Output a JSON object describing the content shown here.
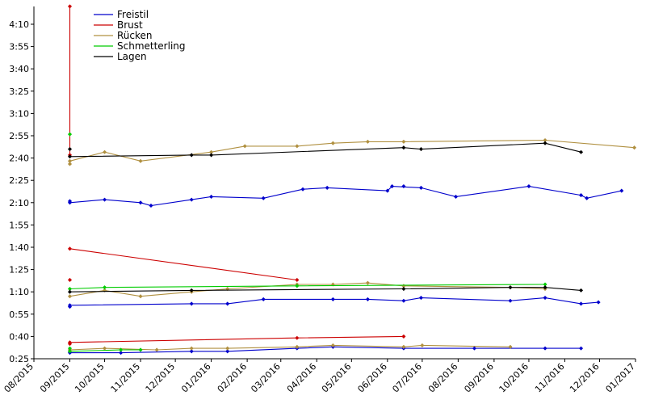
{
  "chart_data": {
    "type": "line",
    "title": "",
    "xlabel": "",
    "ylabel": "",
    "x_tick_labels": [
      "08/2015",
      "09/2015",
      "10/2015",
      "11/2015",
      "12/2015",
      "01/2016",
      "02/2016",
      "03/2016",
      "04/2016",
      "05/2016",
      "06/2016",
      "07/2016",
      "08/2016",
      "09/2016",
      "10/2016",
      "11/2016",
      "12/2016",
      "01/2017"
    ],
    "y_tick_labels": [
      "0:25",
      "0:40",
      "0:55",
      "1:10",
      "1:25",
      "1:40",
      "1:55",
      "2:10",
      "2:25",
      "2:40",
      "2:55",
      "3:10",
      "3:25",
      "3:40",
      "3:55",
      "4:10"
    ],
    "x_range": [
      "2015-08-01",
      "2017-01-01"
    ],
    "y_range_seconds": [
      25,
      265
    ],
    "legend_position": "top-left",
    "series": [
      {
        "name": "Freistil",
        "color": "#0000cc",
        "lines": [
          [
            [
              "2015-09-01",
              29
            ],
            [
              "2015-10-15",
              29
            ],
            [
              "2015-12-15",
              30
            ],
            [
              "2016-01-15",
              30
            ],
            [
              "2016-03-15",
              32
            ],
            [
              "2016-04-15",
              33
            ],
            [
              "2016-06-15",
              32
            ],
            [
              "2016-08-15",
              32
            ],
            [
              "2016-10-15",
              32
            ],
            [
              "2016-11-15",
              32
            ]
          ],
          [
            [
              "2015-09-01",
              61
            ],
            [
              "2015-12-15",
              62
            ],
            [
              "2016-01-15",
              62
            ],
            [
              "2016-02-15",
              65
            ],
            [
              "2016-04-15",
              65
            ],
            [
              "2016-05-15",
              65
            ],
            [
              "2016-06-15",
              64
            ],
            [
              "2016-06-30",
              66
            ],
            [
              "2016-09-15",
              64
            ],
            [
              "2016-10-15",
              66
            ],
            [
              "2016-11-15",
              62
            ],
            [
              "2016-11-30",
              63
            ]
          ],
          [
            [
              "2015-09-01",
              130
            ],
            [
              "2015-10-01",
              132
            ],
            [
              "2015-11-01",
              130
            ],
            [
              "2015-11-10",
              128
            ],
            [
              "2015-12-15",
              132
            ],
            [
              "2016-01-01",
              134
            ],
            [
              "2016-02-15",
              133
            ],
            [
              "2016-03-20",
              139
            ],
            [
              "2016-04-10",
              140
            ],
            [
              "2016-06-01",
              138
            ],
            [
              "2016-06-05",
              141
            ],
            [
              "2016-06-30",
              140
            ],
            [
              "2016-07-30",
              134
            ],
            [
              "2016-10-01",
              141
            ],
            [
              "2016-11-15",
              135
            ],
            [
              "2016-11-20",
              133
            ],
            [
              "2016-12-20",
              138
            ]
          ]
        ],
        "points": [
          [
            "2015-09-01",
            30
          ],
          [
            "2015-09-01",
            60
          ],
          [
            "2015-09-01",
            131
          ],
          [
            "2016-06-15",
            141
          ]
        ]
      },
      {
        "name": "Brust",
        "color": "#cc0000",
        "lines": [
          [
            [
              "2015-09-01",
              36
            ],
            [
              "2016-03-15",
              39
            ],
            [
              "2016-06-15",
              40
            ]
          ],
          [
            [
              "2015-09-01",
              99
            ],
            [
              "2016-03-15",
              78
            ]
          ],
          [
            [
              "2015-09-01",
              262
            ],
            [
              "2015-09-01",
              162
            ]
          ]
        ],
        "points": [
          [
            "2015-09-01",
            35
          ],
          [
            "2015-09-01",
            78
          ]
        ]
      },
      {
        "name": "Rücken",
        "color": "#b09040",
        "lines": [
          [
            [
              "2015-09-01",
              31
            ],
            [
              "2015-10-01",
              32
            ],
            [
              "2015-11-15",
              31
            ],
            [
              "2015-12-15",
              32
            ],
            [
              "2016-01-15",
              32
            ],
            [
              "2016-03-15",
              33
            ],
            [
              "2016-04-15",
              34
            ],
            [
              "2016-06-15",
              33
            ],
            [
              "2016-07-01",
              34
            ],
            [
              "2016-09-15",
              33
            ]
          ],
          [
            [
              "2015-09-01",
              67
            ],
            [
              "2015-10-01",
              71
            ],
            [
              "2015-11-01",
              67
            ],
            [
              "2015-12-15",
              70
            ],
            [
              "2016-01-15",
              72
            ],
            [
              "2016-03-15",
              75
            ],
            [
              "2016-04-15",
              75
            ],
            [
              "2016-05-15",
              76
            ],
            [
              "2016-06-15",
              74
            ],
            [
              "2016-09-15",
              73
            ],
            [
              "2016-10-15",
              72
            ]
          ],
          [
            [
              "2015-09-01",
              158
            ],
            [
              "2015-10-01",
              164
            ],
            [
              "2015-11-01",
              158
            ],
            [
              "2016-01-01",
              164
            ],
            [
              "2016-01-30",
              168
            ],
            [
              "2016-03-15",
              168
            ],
            [
              "2016-04-15",
              170
            ],
            [
              "2016-05-15",
              171
            ],
            [
              "2016-06-15",
              171
            ],
            [
              "2016-10-15",
              172
            ],
            [
              "2016-12-31",
              167
            ]
          ]
        ],
        "points": [
          [
            "2015-09-01",
            156
          ]
        ]
      },
      {
        "name": "Schmetterling",
        "color": "#00cc00",
        "lines": [
          [
            [
              "2015-09-01",
              30
            ],
            [
              "2015-10-15",
              31
            ],
            [
              "2015-11-01",
              31
            ]
          ],
          [
            [
              "2015-09-01",
              72
            ],
            [
              "2015-10-01",
              73
            ],
            [
              "2016-03-15",
              74
            ],
            [
              "2016-10-15",
              75
            ]
          ]
        ],
        "points": [
          [
            "2015-09-01",
            176
          ],
          [
            "2015-09-01",
            32
          ]
        ]
      },
      {
        "name": "Lagen",
        "color": "#000000",
        "lines": [
          [
            [
              "2015-09-01",
              70
            ],
            [
              "2015-12-15",
              71
            ],
            [
              "2016-06-15",
              72
            ],
            [
              "2016-09-15",
              73
            ],
            [
              "2016-10-15",
              73
            ],
            [
              "2016-11-15",
              71
            ]
          ],
          [
            [
              "2015-09-01",
              161
            ],
            [
              "2015-12-15",
              162
            ],
            [
              "2016-01-01",
              162
            ],
            [
              "2016-06-15",
              167
            ],
            [
              "2016-06-30",
              166
            ],
            [
              "2016-10-15",
              170
            ],
            [
              "2016-11-15",
              164
            ]
          ]
        ],
        "points": [
          [
            "2015-09-01",
            166
          ]
        ]
      }
    ]
  }
}
